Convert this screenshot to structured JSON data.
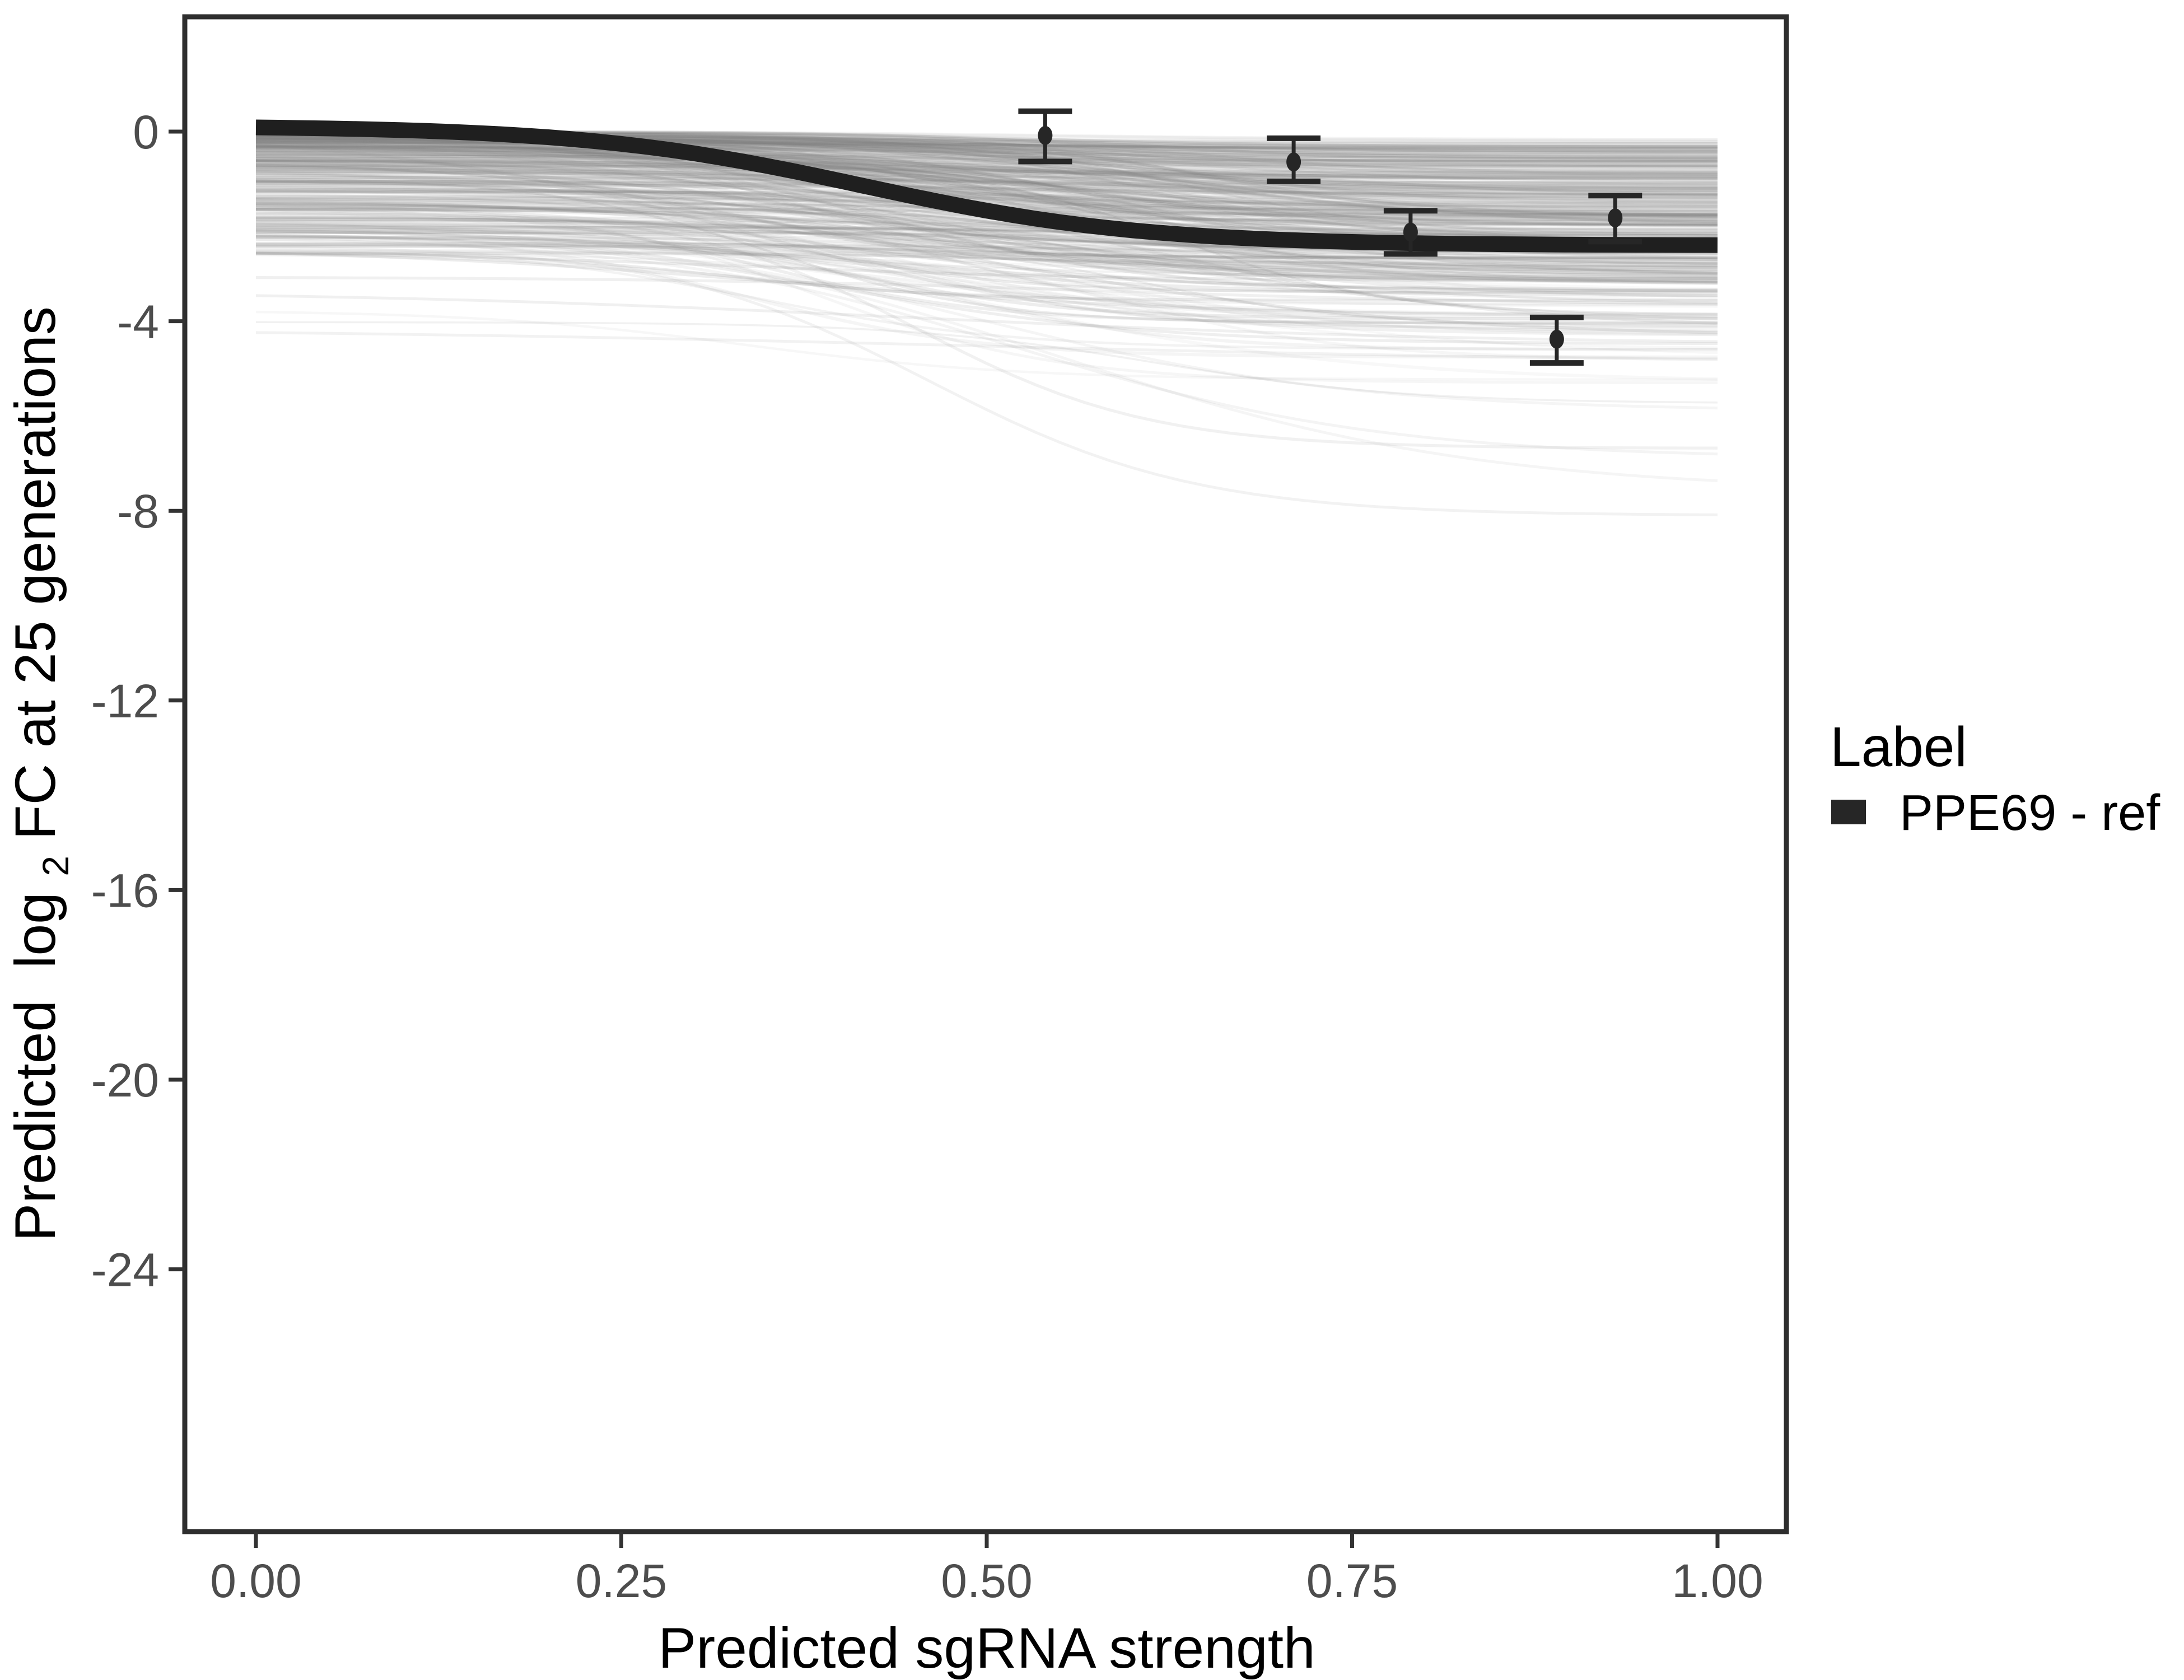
{
  "chart_data": {
    "type": "line",
    "title": "",
    "xlabel": "Predicted sgRNA strength",
    "ylabel": "Predicted log2 FC at 25 generations",
    "ylabel_parts": {
      "pre": "Predicted  log",
      "sub": "2",
      "post": " FC at 25 generations"
    },
    "x_tick_labels": [
      "0.00",
      "0.25",
      "0.50",
      "0.75",
      "1.00"
    ],
    "x_tick_values": [
      0,
      0.25,
      0.5,
      0.75,
      1.0
    ],
    "y_tick_labels": [
      "0",
      "-4",
      "-8",
      "-12",
      "-16",
      "-20",
      "-24"
    ],
    "y_tick_values": [
      0,
      -4,
      -8,
      -12,
      -16,
      -20,
      -24
    ],
    "x_range": [
      -0.049,
      1.047
    ],
    "y_range": [
      -29.5,
      2.4
    ],
    "grid": false,
    "panel_border": true,
    "colors": {
      "reference_line": "#1f1f1f",
      "ensemble_line": "#808080",
      "error_bars": "#262626",
      "axis": "#333333",
      "tick_text": "#4d4d4d"
    },
    "legend": {
      "title": "Label",
      "position": "right",
      "entries": [
        {
          "label": "PPE69 - ref",
          "color": "#262626",
          "swatch": "thick-line"
        }
      ]
    },
    "series": [
      {
        "name": "PPE69 - ref",
        "role": "reference-curve",
        "shape": "sigmoid",
        "y_start": 0.12,
        "y_plateau": -2.4,
        "midpoint": 0.415,
        "steepness": 10.5,
        "stroke_width": 28
      },
      {
        "name": "posterior-ensemble-draws",
        "role": "background-ensemble",
        "shape": "sigmoid-family",
        "count": 400,
        "y_start_range": [
          0,
          -2.6
        ],
        "y_end_min": -8.15,
        "midpoint_range": [
          0.32,
          0.66
        ],
        "steepness_range": [
          6.5,
          14.5
        ],
        "opacity_range": [
          0.05,
          0.16
        ],
        "outliers": [
          {
            "y_start": -2.4,
            "y_end": -8.1,
            "midpoint": 0.46,
            "steepness": 11,
            "opacity": 0.1
          },
          {
            "y_start": -1.9,
            "y_end": -7.6,
            "midpoint": 0.55,
            "steepness": 7,
            "opacity": 0.08
          },
          {
            "y_start": -2.2,
            "y_end": -6.9,
            "midpoint": 0.52,
            "steepness": 8,
            "opacity": 0.09
          },
          {
            "y_start": -2.1,
            "y_end": -5.9,
            "midpoint": 0.5,
            "steepness": 8,
            "opacity": 0.08
          },
          {
            "y_start": -4.15,
            "y_end": -4.9,
            "midpoint": 0.5,
            "steepness": 4,
            "opacity": 0.1
          },
          {
            "y_start": -3.35,
            "y_end": -4.5,
            "midpoint": 0.45,
            "steepness": 5,
            "opacity": 0.12
          },
          {
            "y_start": -1.5,
            "y_end": -5.3,
            "midpoint": 0.38,
            "steepness": 12,
            "opacity": 0.07
          },
          {
            "y_start": -2.5,
            "y_end": -4.8,
            "midpoint": 0.6,
            "steepness": 13,
            "opacity": 0.07
          },
          {
            "y_start": -1.2,
            "y_end": -4.6,
            "midpoint": 0.5,
            "steepness": 9,
            "opacity": 0.06
          }
        ]
      }
    ],
    "error_bar_points": [
      {
        "x": 0.54,
        "y": -0.08,
        "ymin": -0.63,
        "ymax": 0.43
      },
      {
        "x": 0.71,
        "y": -0.64,
        "ymin": -1.05,
        "ymax": -0.14
      },
      {
        "x": 0.79,
        "y": -2.12,
        "ymin": -2.58,
        "ymax": -1.67
      },
      {
        "x": 0.89,
        "y": -4.38,
        "ymin": -4.88,
        "ymax": -3.92
      },
      {
        "x": 0.93,
        "y": -1.82,
        "ymin": -2.32,
        "ymax": -1.35
      }
    ]
  }
}
